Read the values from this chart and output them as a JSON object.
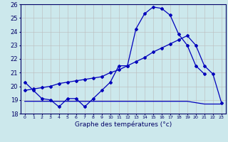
{
  "hours": [
    0,
    1,
    2,
    3,
    4,
    5,
    6,
    7,
    8,
    9,
    10,
    11,
    12,
    13,
    14,
    15,
    16,
    17,
    18,
    19,
    20,
    21,
    22,
    23
  ],
  "temp_curve": [
    20.3,
    19.7,
    19.1,
    19.0,
    18.5,
    19.1,
    19.1,
    18.5,
    19.1,
    19.7,
    20.3,
    21.5,
    21.5,
    24.2,
    25.3,
    25.8,
    25.7,
    25.2,
    23.8,
    23.0,
    21.5,
    20.9,
    null,
    null
  ],
  "temp_min": [
    18.9,
    18.9,
    18.9,
    18.9,
    18.9,
    18.9,
    18.9,
    18.9,
    18.9,
    18.9,
    18.9,
    18.9,
    18.9,
    18.9,
    18.9,
    18.9,
    18.9,
    18.9,
    18.9,
    18.9,
    18.8,
    18.7,
    18.7,
    18.7
  ],
  "temp_trend": [
    19.7,
    19.8,
    19.9,
    20.0,
    20.2,
    20.3,
    20.4,
    20.5,
    20.6,
    20.7,
    21.0,
    21.2,
    21.5,
    21.8,
    22.1,
    22.5,
    22.8,
    23.1,
    23.4,
    23.7,
    23.0,
    21.5,
    20.9,
    18.8
  ],
  "bg_color": "#cce8ec",
  "grid_color": "#bbbbbb",
  "line_color": "#0000bb",
  "xlabel": "Graphe des températures (°c)",
  "ylim": [
    18,
    26
  ],
  "yticks": [
    18,
    19,
    20,
    21,
    22,
    23,
    24,
    25,
    26
  ],
  "xlim": [
    -0.5,
    23.5
  ]
}
